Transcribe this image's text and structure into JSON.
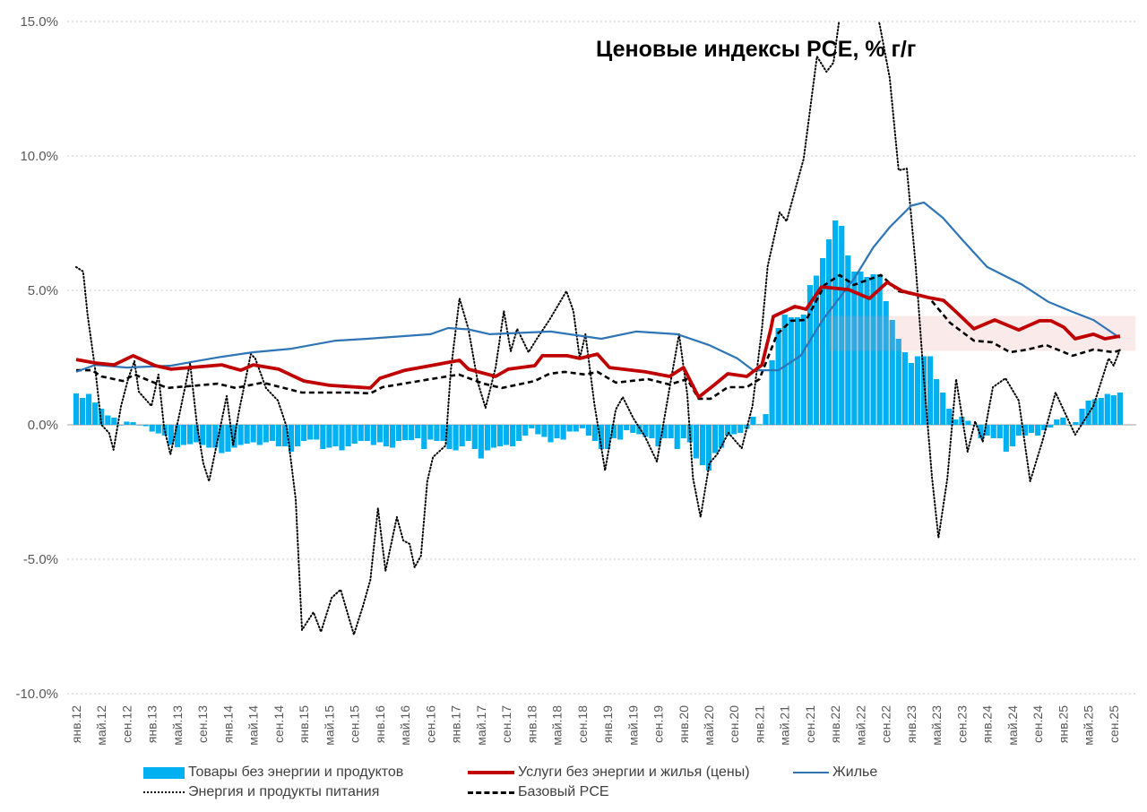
{
  "chart_data": {
    "type": "bar+line",
    "title": "Ценовые индексы PCE, % г/г",
    "xlabel": "",
    "ylabel": "",
    "frequency": "monthly",
    "x_start": "янв.12",
    "x_unit": "months since янв.12",
    "ylim": [
      -10,
      15
    ],
    "yticks": [
      "15.0%",
      "10.0%",
      "5.0%",
      "0.0%",
      "-5.0%",
      "-10.0%"
    ],
    "ytick_values": [
      15,
      10,
      5,
      0,
      -5,
      -10
    ],
    "xticks": [
      "янв.12",
      "май.12",
      "сен.12",
      "янв.13",
      "май.13",
      "сен.13",
      "янв.14",
      "май.14",
      "сен.14",
      "янв.15",
      "май.15",
      "сен.15",
      "янв.16",
      "май.16",
      "сен.16",
      "янв.17",
      "май.17",
      "сен.17",
      "янв.18",
      "май.18",
      "сен.18",
      "янв.19",
      "май.19",
      "сен.19",
      "янв.20",
      "май.20",
      "сен.20",
      "янв.21",
      "май.21",
      "сен.21",
      "янв.22",
      "май.22",
      "сен.22",
      "янв.23",
      "май.23",
      "сен.23",
      "янв.24",
      "май.24",
      "сен.24",
      "янв.25",
      "май.25",
      "сен.25"
    ],
    "grid": true,
    "legend_position": "bottom",
    "highlight_band": {
      "y_from": 2.75,
      "y_to": 4.05,
      "t_from": 119,
      "t_to": 167
    },
    "bars": {
      "name": "Товары без энергии и продуктов",
      "color": "#00b0f0",
      "values": [
        1.17,
        1.0,
        1.15,
        0.83,
        0.6,
        0.35,
        0.27,
        0.0,
        0.12,
        0.1,
        0.0,
        -0.05,
        -0.25,
        -0.32,
        -0.4,
        -0.75,
        -0.83,
        -0.75,
        -0.72,
        -0.65,
        -0.75,
        -0.85,
        -0.85,
        -1.05,
        -1.0,
        -0.85,
        -0.75,
        -0.7,
        -0.65,
        -0.75,
        -0.65,
        -0.6,
        -0.8,
        -0.8,
        -1.0,
        -0.8,
        -0.6,
        -0.55,
        -0.55,
        -0.9,
        -0.85,
        -0.8,
        -0.95,
        -0.8,
        -0.7,
        -0.6,
        -0.6,
        -0.75,
        -0.65,
        -0.8,
        -0.85,
        -0.6,
        -0.57,
        -0.57,
        -0.5,
        -0.9,
        -0.55,
        -0.6,
        -0.6,
        -0.9,
        -0.95,
        -0.8,
        -0.6,
        -0.9,
        -1.25,
        -0.95,
        -0.85,
        -0.8,
        -0.75,
        -0.8,
        -0.6,
        -0.4,
        -0.13,
        -0.35,
        -0.45,
        -0.65,
        -0.5,
        -0.55,
        -0.25,
        -0.25,
        -0.13,
        -0.4,
        -0.6,
        -0.9,
        -0.9,
        -0.5,
        -0.55,
        -0.2,
        -0.3,
        -0.35,
        -0.45,
        -0.5,
        -0.8,
        -0.5,
        -0.5,
        -0.9,
        -0.5,
        -0.65,
        -1.25,
        -1.5,
        -1.7,
        -1.05,
        -0.85,
        -0.4,
        -0.35,
        -0.3,
        -0.15,
        0.3,
        0.02,
        0.4,
        2.4,
        3.6,
        4.1,
        4.0,
        4.0,
        4.1,
        5.2,
        5.55,
        6.2,
        6.9,
        7.6,
        7.4,
        6.3,
        5.7,
        5.7,
        5.5,
        5.6,
        5.6,
        4.6,
        3.9,
        3.2,
        2.7,
        2.3,
        2.55,
        2.55,
        2.55,
        1.7,
        1.2,
        0.6,
        0.2,
        0.3,
        0.15,
        0.0,
        -0.5,
        -0.4,
        -0.5,
        -0.5,
        -1.0,
        -0.8,
        -0.4,
        -0.4,
        -0.3,
        -0.4,
        -0.2,
        -0.1,
        0.2,
        0.27,
        0.0,
        0.1,
        0.6,
        0.9,
        0.95,
        1.0,
        1.15,
        1.1,
        1.2
      ]
    },
    "series": [
      {
        "name": "Услуги без энергии и жилья (цены)",
        "color": "#c00000",
        "style": "solid-thick",
        "points": [
          [
            0,
            2.43
          ],
          [
            3,
            2.3
          ],
          [
            6,
            2.23
          ],
          [
            9,
            2.57
          ],
          [
            12.5,
            2.2
          ],
          [
            15,
            2.07
          ],
          [
            23,
            2.23
          ],
          [
            26,
            2.03
          ],
          [
            28,
            2.23
          ],
          [
            32,
            2.07
          ],
          [
            36,
            1.63
          ],
          [
            40,
            1.47
          ],
          [
            46.5,
            1.37
          ],
          [
            48,
            1.73
          ],
          [
            52,
            2.03
          ],
          [
            56,
            2.2
          ],
          [
            60.6,
            2.4
          ],
          [
            62,
            2.07
          ],
          [
            66.3,
            1.8
          ],
          [
            68.3,
            2.07
          ],
          [
            72.5,
            2.2
          ],
          [
            73.7,
            2.57
          ],
          [
            77.6,
            2.57
          ],
          [
            79.6,
            2.47
          ],
          [
            82.4,
            2.63
          ],
          [
            84.3,
            2.13
          ],
          [
            90,
            1.97
          ],
          [
            93.8,
            1.8
          ],
          [
            96,
            2.13
          ],
          [
            98.4,
            1.03
          ],
          [
            100.8,
            1.47
          ],
          [
            103,
            1.9
          ],
          [
            106,
            1.8
          ],
          [
            108.4,
            2.23
          ],
          [
            109.8,
            3.57
          ],
          [
            110.2,
            4.03
          ],
          [
            113.6,
            4.4
          ],
          [
            115.4,
            4.3
          ],
          [
            117.8,
            5.13
          ],
          [
            122.1,
            5.03
          ],
          [
            125.4,
            4.7
          ],
          [
            128.2,
            5.3
          ],
          [
            130.6,
            4.97
          ],
          [
            134.8,
            4.73
          ],
          [
            137.1,
            4.63
          ],
          [
            139.1,
            4.2
          ],
          [
            141.9,
            3.57
          ],
          [
            145.2,
            3.9
          ],
          [
            149,
            3.53
          ],
          [
            152.3,
            3.87
          ],
          [
            154.1,
            3.87
          ],
          [
            156.1,
            3.63
          ],
          [
            157.9,
            3.2
          ],
          [
            160.8,
            3.37
          ],
          [
            162.6,
            3.2
          ],
          [
            165,
            3.3
          ]
        ]
      },
      {
        "name": "Жилье",
        "color": "#2e75b6",
        "style": "solid",
        "points": [
          [
            0,
            1.97
          ],
          [
            3,
            2.23
          ],
          [
            8,
            2.13
          ],
          [
            15,
            2.2
          ],
          [
            19,
            2.37
          ],
          [
            23,
            2.53
          ],
          [
            28,
            2.7
          ],
          [
            34,
            2.83
          ],
          [
            41,
            3.13
          ],
          [
            46,
            3.2
          ],
          [
            56,
            3.37
          ],
          [
            58.8,
            3.6
          ],
          [
            62,
            3.55
          ],
          [
            65.4,
            3.37
          ],
          [
            75,
            3.47
          ],
          [
            83,
            3.2
          ],
          [
            88.5,
            3.47
          ],
          [
            95,
            3.37
          ],
          [
            100,
            2.97
          ],
          [
            104.5,
            2.47
          ],
          [
            107,
            2.03
          ],
          [
            111,
            2.03
          ],
          [
            114.5,
            2.57
          ],
          [
            118,
            3.9
          ],
          [
            123,
            5.45
          ],
          [
            126,
            6.6
          ],
          [
            128.6,
            7.35
          ],
          [
            132,
            8.15
          ],
          [
            134,
            8.27
          ],
          [
            137,
            7.7
          ],
          [
            140,
            6.9
          ],
          [
            144,
            5.87
          ],
          [
            149.4,
            5.23
          ],
          [
            153.7,
            4.57
          ],
          [
            157.5,
            4.2
          ],
          [
            160.8,
            3.9
          ],
          [
            165,
            3.23
          ]
        ]
      },
      {
        "name": "Энергия и продукты питания",
        "color": "#000000",
        "style": "dotted",
        "points": [
          [
            0,
            5.87
          ],
          [
            1.1,
            5.7
          ],
          [
            1.8,
            4.1
          ],
          [
            3.1,
            1.9
          ],
          [
            4,
            0
          ],
          [
            5.2,
            -0.3
          ],
          [
            5.9,
            -0.93
          ],
          [
            7.1,
            0.7
          ],
          [
            8.2,
            1.7
          ],
          [
            9.2,
            2.37
          ],
          [
            9.9,
            1.23
          ],
          [
            11.9,
            0.7
          ],
          [
            13,
            1.87
          ],
          [
            13.9,
            -0.1
          ],
          [
            14.9,
            -1.1
          ],
          [
            16.3,
            0.37
          ],
          [
            18,
            2.3
          ],
          [
            19.1,
            0
          ],
          [
            20.1,
            -1.43
          ],
          [
            21,
            -2.1
          ],
          [
            22.4,
            -0.53
          ],
          [
            23.8,
            1.07
          ],
          [
            24.8,
            -0.77
          ],
          [
            25.8,
            0.57
          ],
          [
            27.6,
            2.63
          ],
          [
            28.3,
            2.47
          ],
          [
            30,
            1.37
          ],
          [
            31.9,
            0.9
          ],
          [
            33.3,
            -0.1
          ],
          [
            34.7,
            -2.77
          ],
          [
            35.7,
            -7.63
          ],
          [
            37.5,
            -6.97
          ],
          [
            38.7,
            -7.7
          ],
          [
            40.4,
            -6.43
          ],
          [
            41.8,
            -6.13
          ],
          [
            43.9,
            -7.8
          ],
          [
            45.3,
            -6.77
          ],
          [
            46.5,
            -5.77
          ],
          [
            47.7,
            -3.1
          ],
          [
            48.9,
            -5.43
          ],
          [
            50.7,
            -3.43
          ],
          [
            51.7,
            -4.3
          ],
          [
            52.7,
            -4.43
          ],
          [
            53.5,
            -5.3
          ],
          [
            54.5,
            -4.87
          ],
          [
            55.5,
            -2.1
          ],
          [
            56.4,
            -1.2
          ],
          [
            58.4,
            -0.77
          ],
          [
            59.2,
            2.0
          ],
          [
            60.6,
            4.7
          ],
          [
            62,
            3.57
          ],
          [
            63.5,
            1.57
          ],
          [
            64.7,
            0.63
          ],
          [
            66.3,
            2.13
          ],
          [
            67.6,
            4.23
          ],
          [
            68.7,
            2.73
          ],
          [
            69.7,
            3.57
          ],
          [
            71.5,
            2.7
          ],
          [
            72.9,
            3.23
          ],
          [
            74.8,
            3.9
          ],
          [
            77.5,
            4.97
          ],
          [
            78.6,
            4.23
          ],
          [
            79.6,
            2.47
          ],
          [
            80.5,
            3.37
          ],
          [
            81.9,
            0.8
          ],
          [
            83.6,
            -1.7
          ],
          [
            85.3,
            0.57
          ],
          [
            86.4,
            1.03
          ],
          [
            88.1,
            0.23
          ],
          [
            89.9,
            -0.43
          ],
          [
            91.8,
            -1.37
          ],
          [
            93.8,
            1.37
          ],
          [
            95.3,
            3.37
          ],
          [
            96.6,
            1.13
          ],
          [
            97.5,
            -1.97
          ],
          [
            98.7,
            -3.43
          ],
          [
            100.1,
            -1.43
          ],
          [
            101.3,
            -1.1
          ],
          [
            103.1,
            -0.3
          ],
          [
            105.2,
            -0.87
          ],
          [
            106.9,
            0.7
          ],
          [
            108.4,
            3.57
          ],
          [
            109.3,
            5.9
          ],
          [
            111.2,
            7.9
          ],
          [
            112.3,
            7.57
          ],
          [
            115,
            9.9
          ],
          [
            117.1,
            13.7
          ],
          [
            118.6,
            13.13
          ],
          [
            119.7,
            13.47
          ],
          [
            120.7,
            15.2
          ],
          [
            123.8,
            17.8
          ],
          [
            127,
            14.9
          ],
          [
            128.6,
            12.9
          ],
          [
            130,
            9.47
          ],
          [
            131.3,
            9.53
          ],
          [
            132.7,
            5.9
          ],
          [
            133.9,
            2.0
          ],
          [
            135.3,
            -2.0
          ],
          [
            136.3,
            -4.2
          ],
          [
            137.7,
            -2.0
          ],
          [
            139.1,
            1.7
          ],
          [
            140.9,
            -1.0
          ],
          [
            142.1,
            0.13
          ],
          [
            143.3,
            -0.63
          ],
          [
            144.9,
            1.4
          ],
          [
            146.9,
            1.73
          ],
          [
            149,
            0.9
          ],
          [
            150.8,
            -2.1
          ],
          [
            152.7,
            -0.63
          ],
          [
            154.8,
            1.2
          ],
          [
            157.9,
            -0.37
          ],
          [
            160.8,
            0.7
          ],
          [
            163.2,
            2.47
          ],
          [
            164,
            2.2
          ],
          [
            165,
            2.8
          ]
        ]
      },
      {
        "name": "Базовый PCE",
        "color": "#000000",
        "style": "dashed",
        "points": [
          [
            0,
            2.03
          ],
          [
            2.5,
            2.03
          ],
          [
            4,
            1.8
          ],
          [
            7.4,
            1.63
          ],
          [
            9.2,
            1.87
          ],
          [
            14.4,
            1.37
          ],
          [
            22.4,
            1.53
          ],
          [
            25.2,
            1.37
          ],
          [
            29.5,
            1.57
          ],
          [
            35.7,
            1.2
          ],
          [
            43.6,
            1.2
          ],
          [
            46.5,
            1.17
          ],
          [
            48.4,
            1.4
          ],
          [
            56,
            1.7
          ],
          [
            60.5,
            1.87
          ],
          [
            64.4,
            1.53
          ],
          [
            67.3,
            1.37
          ],
          [
            72.5,
            1.63
          ],
          [
            74.8,
            1.9
          ],
          [
            77.2,
            1.97
          ],
          [
            80.5,
            1.87
          ],
          [
            82.4,
            1.97
          ],
          [
            85.3,
            1.57
          ],
          [
            90.4,
            1.7
          ],
          [
            93.8,
            1.5
          ],
          [
            96.6,
            1.7
          ],
          [
            98.4,
            0.97
          ],
          [
            100.3,
            0.97
          ],
          [
            103,
            1.4
          ],
          [
            106,
            1.4
          ],
          [
            108,
            1.7
          ],
          [
            110.8,
            3.37
          ],
          [
            113,
            3.87
          ],
          [
            115.4,
            3.9
          ],
          [
            118.3,
            5.2
          ],
          [
            120.7,
            5.57
          ],
          [
            122.9,
            5.2
          ],
          [
            127.2,
            5.57
          ],
          [
            130,
            4.97
          ],
          [
            134.8,
            4.73
          ],
          [
            138.1,
            3.8
          ],
          [
            141.9,
            3.13
          ],
          [
            144.8,
            3.07
          ],
          [
            147.6,
            2.7
          ],
          [
            150.4,
            2.8
          ],
          [
            153.3,
            2.97
          ],
          [
            157.5,
            2.57
          ],
          [
            160.8,
            2.8
          ],
          [
            164,
            2.7
          ],
          [
            165,
            2.77
          ]
        ]
      }
    ]
  },
  "legend": {
    "goods": "Товары без энергии и продуктов",
    "services": "Услуги без энергии и жилья (цены)",
    "housing": "Жилье",
    "energy_food": "Энергия и продукты питания",
    "core": "Базовый PCE"
  }
}
